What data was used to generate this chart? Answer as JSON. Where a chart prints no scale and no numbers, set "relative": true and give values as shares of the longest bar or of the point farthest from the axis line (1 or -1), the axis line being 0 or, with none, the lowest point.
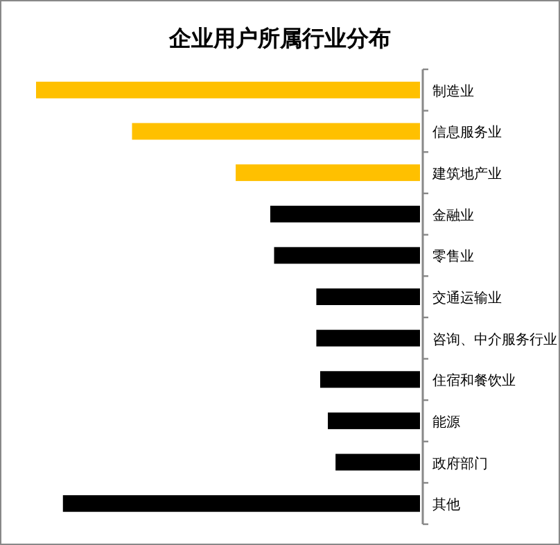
{
  "chart_data": {
    "type": "bar",
    "title": "企业用户所属行业分布",
    "orientation": "horizontal",
    "relative": true,
    "categories": [
      "制造业",
      "信息服务业",
      "建筑地产业",
      "金融业",
      "零售业",
      "交通运输业",
      "咨询、中介服务行业",
      "住宿和餐饮业",
      "能源",
      "政府部门",
      "其他"
    ],
    "values": [
      1,
      0.75,
      0.48,
      0.39,
      0.38,
      0.27,
      0.27,
      0.26,
      0.24,
      0.22,
      0.93
    ],
    "colors": [
      "#ffc000",
      "#ffc000",
      "#ffc000",
      "#000000",
      "#000000",
      "#000000",
      "#000000",
      "#000000",
      "#000000",
      "#000000",
      "#000000"
    ],
    "grid": false
  }
}
